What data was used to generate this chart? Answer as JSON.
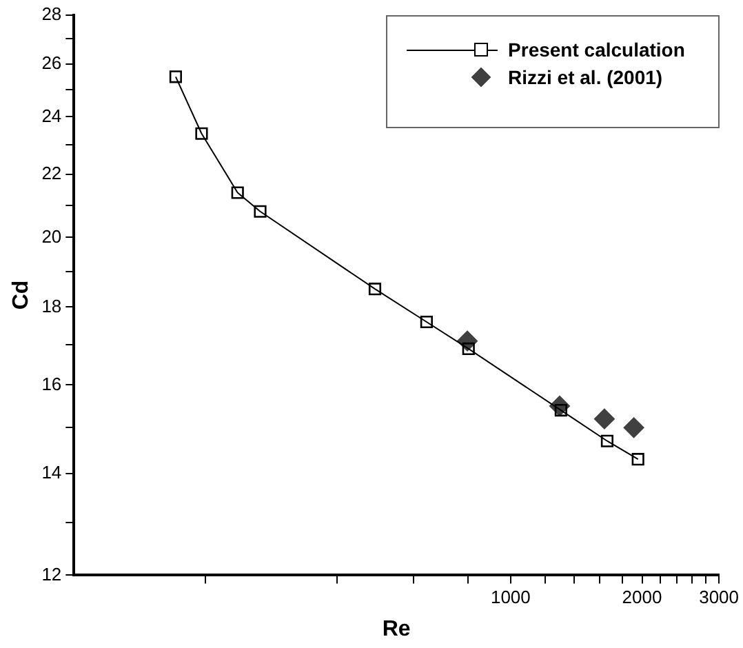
{
  "chart_data": {
    "type": "line",
    "xlabel": "Re",
    "ylabel": "Cd",
    "log": "xy",
    "grid": false,
    "legend": "top right",
    "xlim": [
      100,
      3000
    ],
    "ylim": [
      12,
      28
    ],
    "xticks": [
      {
        "value": 200,
        "label": null
      },
      {
        "value": 400,
        "label": null
      },
      {
        "value": 600,
        "label": null
      },
      {
        "value": 800,
        "label": null
      },
      1000,
      {
        "value": 1200,
        "label": null
      },
      {
        "value": 1400,
        "label": null
      },
      {
        "value": 1600,
        "label": null
      },
      {
        "value": 1800,
        "label": null
      },
      2000,
      {
        "value": 2200,
        "label": null
      },
      {
        "value": 2400,
        "label": null
      },
      {
        "value": 2600,
        "label": null
      },
      {
        "value": 2800,
        "label": null
      },
      3000
    ],
    "yticks": [
      12,
      {
        "value": 13,
        "label": null
      },
      14,
      {
        "value": 15,
        "label": null
      },
      16,
      {
        "value": 17,
        "label": null
      },
      18,
      {
        "value": 19,
        "label": null
      },
      20,
      {
        "value": 21,
        "label": null
      },
      22,
      {
        "value": 23,
        "label": null
      },
      24,
      {
        "value": 25,
        "label": null
      },
      26,
      {
        "value": 27,
        "label": null
      },
      28
    ],
    "series": [
      {
        "name": "Present calculation",
        "type": "line",
        "marker": "square",
        "line_style": "solid",
        "color": "#000000",
        "x": [
          171,
          196,
          237,
          267,
          489,
          642,
          801,
          1304,
          1664,
          1958
        ],
        "values": [
          25.5,
          23.4,
          21.4,
          20.8,
          18.5,
          17.6,
          16.9,
          15.4,
          14.7,
          14.3
        ]
      },
      {
        "name": "Rizzi et al. (2001)",
        "type": "scatter",
        "marker": "diamond",
        "color": "#404040",
        "x": [
          796,
          1295,
          1640,
          1915
        ],
        "values": [
          17.1,
          15.5,
          15.2,
          15.0
        ]
      }
    ]
  }
}
